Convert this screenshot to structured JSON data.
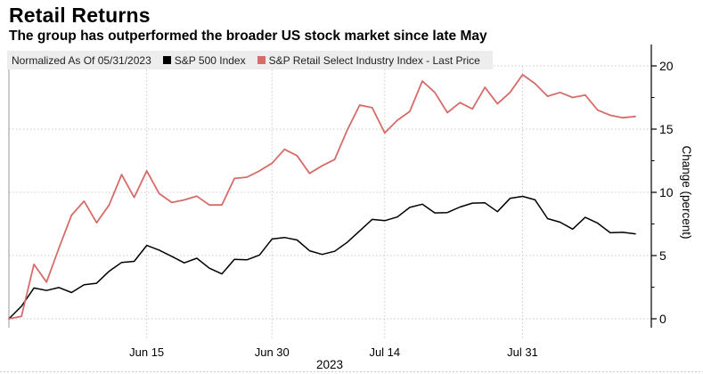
{
  "title": "Retail Returns",
  "subtitle": "The group has outperformed the broader US stock market since late May",
  "legend": {
    "note": "Normalized As Of 05/31/2023",
    "sp500_label": "S&P 500 Index",
    "retail_label": "S&P Retail Select Industry Index - Last Price"
  },
  "axis": {
    "y_label": "Change (percent)",
    "x_year": "2023"
  },
  "colors": {
    "sp500": "#000000",
    "retail": "#d66c6a",
    "grid": "#c9c9c9",
    "axis": "#000000",
    "left_frame": "#9a9a9a"
  },
  "chart_data": {
    "type": "line",
    "title": "Retail Returns",
    "subtitle": "The group has outperformed the broader US stock market since late May",
    "ylabel": "Change (percent)",
    "ylim": [
      0,
      20
    ],
    "grid": true,
    "legend_position": "top",
    "x_dates": [
      "05/31",
      "06/01",
      "06/02",
      "06/05",
      "06/06",
      "06/07",
      "06/08",
      "06/09",
      "06/12",
      "06/13",
      "06/14",
      "06/15",
      "06/16",
      "06/20",
      "06/21",
      "06/22",
      "06/23",
      "06/26",
      "06/27",
      "06/28",
      "06/29",
      "06/30",
      "07/03",
      "07/05",
      "07/06",
      "07/07",
      "07/10",
      "07/11",
      "07/12",
      "07/13",
      "07/14",
      "07/17",
      "07/18",
      "07/19",
      "07/20",
      "07/21",
      "07/24",
      "07/25",
      "07/26",
      "07/27",
      "07/28",
      "07/31",
      "08/01",
      "08/02",
      "08/03",
      "08/04",
      "08/07",
      "08/08",
      "08/09",
      "08/10",
      "08/11"
    ],
    "series": [
      {
        "name": "S&P 500 Index",
        "color": "#000000",
        "values": [
          0,
          0.99,
          2.44,
          2.24,
          2.47,
          2.08,
          2.7,
          2.81,
          3.76,
          4.46,
          4.54,
          5.8,
          5.43,
          4.94,
          4.42,
          4.79,
          4.0,
          3.55,
          4.7,
          4.66,
          5.04,
          6.31,
          6.43,
          6.23,
          5.38,
          5.09,
          5.34,
          6.04,
          6.95,
          7.86,
          7.76,
          8.05,
          8.81,
          9.06,
          8.37,
          8.4,
          8.84,
          9.15,
          9.17,
          8.47,
          9.52,
          9.68,
          9.41,
          7.92,
          7.64,
          7.09,
          8.02,
          7.56,
          6.8,
          6.84,
          6.72
        ]
      },
      {
        "name": "S&P Retail Select Industry Index - Last Price",
        "color": "#d66c6a",
        "values": [
          0,
          0.2,
          4.3,
          2.9,
          5.6,
          8.2,
          9.3,
          7.6,
          9.0,
          11.4,
          9.6,
          11.7,
          9.9,
          9.2,
          9.4,
          9.7,
          9.0,
          9.0,
          11.1,
          11.2,
          11.7,
          12.3,
          13.4,
          12.9,
          11.5,
          12.1,
          12.6,
          14.9,
          16.9,
          16.7,
          14.7,
          15.7,
          16.4,
          18.8,
          17.9,
          16.3,
          17.1,
          16.6,
          18.3,
          17.0,
          17.9,
          19.3,
          18.6,
          17.6,
          17.9,
          17.5,
          17.7,
          16.5,
          16.1,
          15.9,
          16.0
        ]
      }
    ],
    "y_ticks": [
      0,
      5,
      10,
      15,
      20
    ],
    "y_minor_ticks": [
      2.5,
      7.5,
      12.5,
      17.5
    ],
    "x_ticks": [
      {
        "label": "Jun 15",
        "index": 11
      },
      {
        "label": "Jun 30",
        "index": 21
      },
      {
        "label": "Jul 14",
        "index": 30
      },
      {
        "label": "Jul 31",
        "index": 41
      }
    ]
  }
}
